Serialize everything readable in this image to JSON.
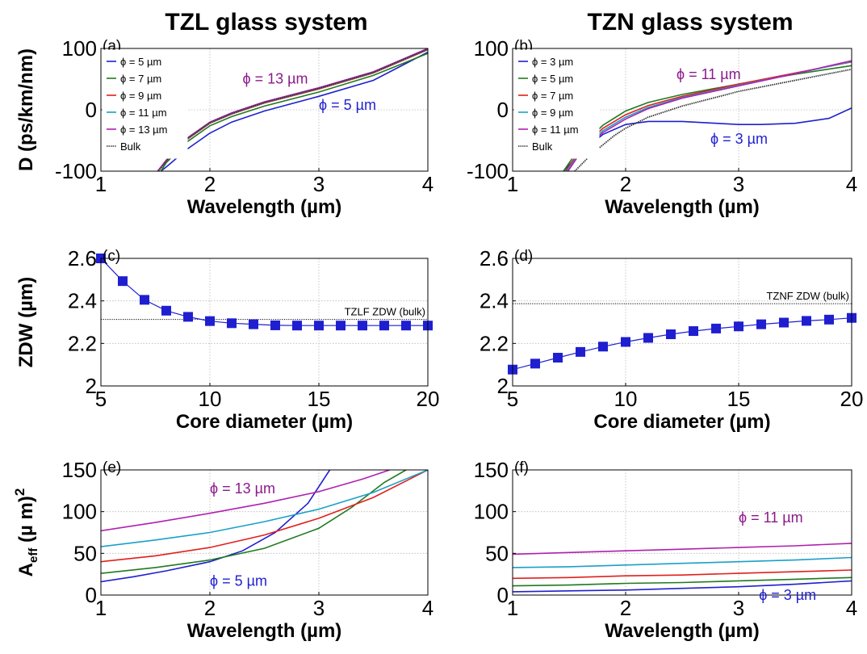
{
  "titles": {
    "left": "TZL glass system",
    "right": "TZN glass system"
  },
  "chart_data": [
    {
      "id": "a",
      "type": "line",
      "panel_label": "(a)",
      "xlabel": "Wavelength (µm)",
      "ylabel": "D (ps/km/nm)",
      "xlim": [
        1,
        4
      ],
      "ylim": [
        -100,
        100
      ],
      "xticks": [
        "1",
        "2",
        "3",
        "4"
      ],
      "yticks": [
        "-100",
        "0",
        "100"
      ],
      "grid": true,
      "legend_position": "top-left",
      "series": [
        {
          "name": "ϕ = 5 µm",
          "color": "#1f1fd0",
          "style": "solid",
          "x": [
            1.55,
            1.6,
            1.8,
            2.0,
            2.2,
            2.5,
            3.0,
            3.5,
            4.0
          ],
          "y": [
            -100,
            -93,
            -63,
            -38,
            -20,
            -2,
            22,
            48,
            94
          ]
        },
        {
          "name": "ϕ = 7 µm",
          "color": "#1f7a1f",
          "style": "solid",
          "x": [
            1.55,
            1.6,
            1.8,
            2.0,
            2.2,
            2.5,
            3.0,
            3.5,
            4.0
          ],
          "y": [
            -100,
            -86,
            -51,
            -26,
            -11,
            6,
            29,
            56,
            92
          ]
        },
        {
          "name": "ϕ = 9 µm",
          "color": "#e0201c",
          "style": "solid",
          "x": [
            1.52,
            1.6,
            1.8,
            2.0,
            2.2,
            2.5,
            3.0,
            3.5,
            4.0
          ],
          "y": [
            -100,
            -84,
            -47,
            -22,
            -7,
            11,
            34,
            60,
            98
          ]
        },
        {
          "name": "ϕ = 11 µm",
          "color": "#1aa0c8",
          "style": "solid",
          "x": [
            1.52,
            1.6,
            1.8,
            2.0,
            2.2,
            2.5,
            3.0,
            3.5,
            4.0
          ],
          "y": [
            -100,
            -83,
            -46,
            -21,
            -6,
            12,
            35,
            61,
            99
          ]
        },
        {
          "name": "ϕ = 13 µm",
          "color": "#b020b0",
          "style": "solid",
          "x": [
            1.52,
            1.6,
            1.8,
            2.0,
            2.2,
            2.5,
            3.0,
            3.5,
            4.0
          ],
          "y": [
            -100,
            -82,
            -45,
            -20,
            -5,
            13,
            36,
            62,
            100
          ]
        },
        {
          "name": "Bulk",
          "color": "#333333",
          "style": "dotted",
          "x": [
            1.53,
            1.6,
            1.8,
            2.0,
            2.2,
            2.5,
            3.0,
            3.5,
            4.0
          ],
          "y": [
            -100,
            -83,
            -46,
            -21,
            -6,
            12,
            35,
            61,
            99
          ]
        }
      ],
      "annotations": [
        {
          "text": "ϕ = 13 µm",
          "color": "#8a1a8a",
          "x": 2.3,
          "y": 43
        },
        {
          "text": "ϕ = 5 µm",
          "color": "#1f1fd0",
          "x": 3.0,
          "y": 0
        }
      ]
    },
    {
      "id": "b",
      "type": "line",
      "panel_label": "(b)",
      "xlabel": "Wavelength (µm)",
      "ylabel": "",
      "xlim": [
        1,
        4
      ],
      "ylim": [
        -100,
        100
      ],
      "xticks": [
        "1",
        "2",
        "3",
        "4"
      ],
      "yticks": [
        "-100",
        "0",
        "100"
      ],
      "grid": true,
      "legend_position": "top-left",
      "series": [
        {
          "name": "ϕ = 3 µm",
          "color": "#1f1fd0",
          "style": "solid",
          "x": [
            1.45,
            1.6,
            1.8,
            2.0,
            2.2,
            2.5,
            2.8,
            3.0,
            3.2,
            3.5,
            3.8,
            4.0
          ],
          "y": [
            -100,
            -70,
            -40,
            -24,
            -19,
            -19,
            -22,
            -24,
            -24,
            -22,
            -14,
            3
          ]
        },
        {
          "name": "ϕ = 5 µm",
          "color": "#1f7a1f",
          "style": "solid",
          "x": [
            1.45,
            1.6,
            1.8,
            2.0,
            2.2,
            2.5,
            3.0,
            3.5,
            4.0
          ],
          "y": [
            -100,
            -60,
            -25,
            -2,
            12,
            25,
            42,
            58,
            72
          ]
        },
        {
          "name": "ϕ = 7 µm",
          "color": "#e0201c",
          "style": "solid",
          "x": [
            1.47,
            1.6,
            1.8,
            2.0,
            2.2,
            2.5,
            3.0,
            3.5,
            4.0
          ],
          "y": [
            -100,
            -64,
            -30,
            -8,
            7,
            22,
            42,
            60,
            78
          ]
        },
        {
          "name": "ϕ = 9 µm",
          "color": "#1aa0c8",
          "style": "solid",
          "x": [
            1.48,
            1.6,
            1.8,
            2.0,
            2.2,
            2.5,
            3.0,
            3.5,
            4.0
          ],
          "y": [
            -100,
            -68,
            -34,
            -12,
            4,
            20,
            40,
            59,
            79
          ]
        },
        {
          "name": "ϕ = 11 µm",
          "color": "#b020b0",
          "style": "solid",
          "x": [
            1.49,
            1.6,
            1.8,
            2.0,
            2.2,
            2.5,
            3.0,
            3.5,
            4.0
          ],
          "y": [
            -100,
            -70,
            -37,
            -15,
            2,
            19,
            39,
            59,
            80
          ]
        },
        {
          "name": "Bulk",
          "color": "#333333",
          "style": "dotted",
          "x": [
            1.55,
            1.7,
            1.9,
            2.0,
            2.2,
            2.5,
            3.0,
            3.5,
            4.0
          ],
          "y": [
            -100,
            -72,
            -42,
            -30,
            -12,
            6,
            30,
            48,
            66
          ]
        }
      ],
      "annotations": [
        {
          "text": "ϕ = 11 µm",
          "color": "#8a1a8a",
          "x": 2.45,
          "y": 50
        },
        {
          "text": "ϕ = 3 µm",
          "color": "#1f1fd0",
          "x": 2.75,
          "y": -55
        }
      ]
    },
    {
      "id": "c",
      "type": "line",
      "panel_label": "(c)",
      "xlabel": "Core diameter (µm)",
      "ylabel": "ZDW (µm)",
      "xlim": [
        5,
        20
      ],
      "ylim": [
        2,
        2.6
      ],
      "xticks": [
        "5",
        "10",
        "15",
        "20"
      ],
      "yticks": [
        "2",
        "2.2",
        "2.4",
        "2.6"
      ],
      "grid": true,
      "series": [
        {
          "name": "",
          "color": "#1f1fd0",
          "style": "solid-markers",
          "x": [
            5,
            6,
            7,
            8,
            9,
            10,
            11,
            12,
            13,
            14,
            15,
            16,
            17,
            18,
            19,
            20
          ],
          "y": [
            2.6,
            2.493,
            2.405,
            2.354,
            2.325,
            2.305,
            2.295,
            2.29,
            2.285,
            2.284,
            2.284,
            2.284,
            2.284,
            2.284,
            2.284,
            2.284
          ]
        }
      ],
      "reference": {
        "text": "TZLF ZDW (bulk)",
        "y": 2.313
      }
    },
    {
      "id": "d",
      "type": "line",
      "panel_label": "(d)",
      "xlabel": "Core diameter (µm)",
      "ylabel": "",
      "xlim": [
        5,
        20
      ],
      "ylim": [
        2,
        2.6
      ],
      "xticks": [
        "5",
        "10",
        "15",
        "20"
      ],
      "yticks": [
        "2",
        "2.2",
        "2.4",
        "2.6"
      ],
      "grid": true,
      "series": [
        {
          "name": "",
          "color": "#1f1fd0",
          "style": "solid-markers",
          "x": [
            5,
            6,
            7,
            8,
            9,
            10,
            11,
            12,
            13,
            14,
            15,
            16,
            17,
            18,
            19,
            20
          ],
          "y": [
            2.077,
            2.105,
            2.133,
            2.16,
            2.185,
            2.207,
            2.226,
            2.243,
            2.258,
            2.27,
            2.28,
            2.29,
            2.298,
            2.306,
            2.312,
            2.32
          ]
        }
      ],
      "reference": {
        "text": "TZNF ZDW (bulk)",
        "y": 2.387
      }
    },
    {
      "id": "e",
      "type": "line",
      "panel_label": "(e)",
      "xlabel": "Wavelength (µm)",
      "ylabel_main": "A",
      "ylabel_sub": "eff",
      "ylabel_rest": " (µ m)",
      "ylabel_sup": "2",
      "xlim": [
        1,
        4
      ],
      "ylim": [
        0,
        150
      ],
      "xticks": [
        "1",
        "2",
        "3",
        "4"
      ],
      "yticks": [
        "0",
        "50",
        "100",
        "150"
      ],
      "grid": true,
      "series": [
        {
          "name": "ϕ = 5 µm",
          "color": "#1f1fd0",
          "style": "solid",
          "x": [
            1.0,
            1.3,
            1.6,
            2.0,
            2.3,
            2.6,
            2.9,
            3.1
          ],
          "y": [
            16,
            22,
            29,
            40,
            53,
            75,
            110,
            150
          ]
        },
        {
          "name": "ϕ = 7 µm",
          "color": "#1f7a1f",
          "style": "solid",
          "x": [
            1.0,
            1.5,
            2.0,
            2.5,
            3.0,
            3.3,
            3.6,
            3.8
          ],
          "y": [
            26,
            33,
            42,
            56,
            80,
            105,
            135,
            150
          ]
        },
        {
          "name": "ϕ = 9 µm",
          "color": "#e0201c",
          "style": "solid",
          "x": [
            1.0,
            1.5,
            2.0,
            2.5,
            3.0,
            3.5,
            4.0
          ],
          "y": [
            40,
            47,
            57,
            72,
            92,
            117,
            150
          ]
        },
        {
          "name": "ϕ = 11 µm",
          "color": "#1aa0c8",
          "style": "solid",
          "x": [
            1.0,
            1.5,
            2.0,
            2.5,
            3.0,
            3.5,
            4.0
          ],
          "y": [
            58,
            66,
            75,
            88,
            103,
            123,
            150
          ]
        },
        {
          "name": "ϕ = 13 µm",
          "color": "#b020b0",
          "style": "solid",
          "x": [
            1.0,
            1.5,
            2.0,
            2.5,
            3.0,
            3.4,
            3.65
          ],
          "y": [
            77,
            87,
            98,
            110,
            124,
            139,
            150
          ]
        }
      ],
      "annotations": [
        {
          "text": "ϕ = 13 µm",
          "color": "#8a1a8a",
          "x": 2.0,
          "y": 122
        },
        {
          "text": "ϕ = 5 µm",
          "color": "#1f1fd0",
          "x": 2.0,
          "y": 11
        }
      ]
    },
    {
      "id": "f",
      "type": "line",
      "panel_label": "(f)",
      "xlabel": "Wavelength (µm)",
      "ylabel": "",
      "xlim": [
        1,
        4
      ],
      "ylim": [
        0,
        150
      ],
      "xticks": [
        "1",
        "2",
        "3",
        "4"
      ],
      "yticks": [
        "0",
        "50",
        "100",
        "150"
      ],
      "grid": true,
      "series": [
        {
          "name": "ϕ = 3 µm",
          "color": "#1f1fd0",
          "style": "solid",
          "x": [
            1.0,
            1.5,
            2.0,
            2.5,
            3.0,
            3.5,
            4.0
          ],
          "y": [
            4,
            5,
            6,
            8,
            10,
            13,
            17
          ]
        },
        {
          "name": "ϕ = 5 µm",
          "color": "#1f7a1f",
          "style": "solid",
          "x": [
            1.0,
            1.5,
            2.0,
            2.5,
            3.0,
            3.5,
            4.0
          ],
          "y": [
            11,
            12,
            14,
            15,
            17,
            19,
            21
          ]
        },
        {
          "name": "ϕ = 7 µm",
          "color": "#e0201c",
          "style": "solid",
          "x": [
            1.0,
            1.5,
            2.0,
            2.5,
            3.0,
            3.5,
            4.0
          ],
          "y": [
            20,
            21,
            23,
            24,
            26,
            28,
            30
          ]
        },
        {
          "name": "ϕ = 9 µm",
          "color": "#1aa0c8",
          "style": "solid",
          "x": [
            1.0,
            1.5,
            2.0,
            2.5,
            3.0,
            3.5,
            4.0
          ],
          "y": [
            33,
            34,
            36,
            38,
            40,
            42,
            45
          ]
        },
        {
          "name": "ϕ = 11 µm",
          "color": "#b020b0",
          "style": "solid",
          "x": [
            1.0,
            1.5,
            2.0,
            2.5,
            3.0,
            3.5,
            4.0
          ],
          "y": [
            49,
            51,
            53,
            55,
            57,
            59,
            62
          ]
        }
      ],
      "annotations": [
        {
          "text": "ϕ = 11 µm",
          "color": "#8a1a8a",
          "x": 3.0,
          "y": 87
        },
        {
          "text": "ϕ = 3 µm",
          "color": "#1f1fd0",
          "x": 3.18,
          "y": -6
        }
      ]
    }
  ]
}
